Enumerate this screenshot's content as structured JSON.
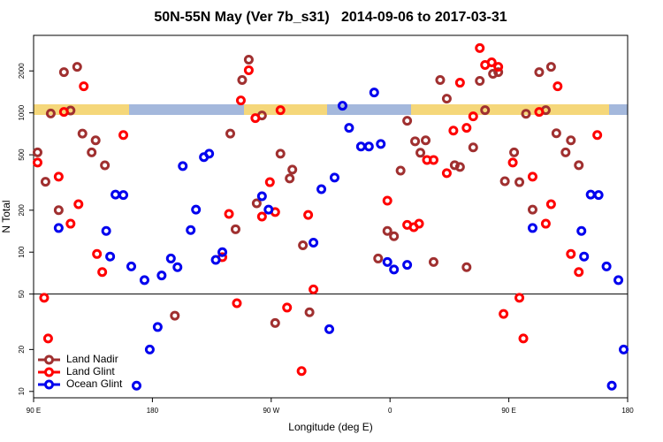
{
  "chart_data": {
    "type": "scatter",
    "title": "50N-55N May (Ver 7b_s31)   2014-09-06 to 2017-03-31",
    "x_label": "Longitude (deg E)",
    "y_label": "N Total",
    "xlim": [
      90,
      540
    ],
    "xticks": [
      {
        "value": 90,
        "label": "90 E"
      },
      180,
      {
        "value": 270,
        "label": "90 W"
      },
      {
        "value": 360,
        "label": "0"
      },
      {
        "value": 450,
        "label": "90 E"
      },
      {
        "value": 540,
        "label": "180"
      }
    ],
    "ylim": [
      9,
      3600
    ],
    "yticks": [
      10,
      20,
      50,
      100,
      200,
      500,
      1000,
      2000
    ],
    "yscale": "log",
    "hline": 50,
    "legend": "lower left",
    "series": [
      {
        "name": "Land Nadir",
        "color": "#a03030",
        "x": [
          93,
          99,
          103,
          109,
          113,
          118,
          123,
          127,
          134,
          137,
          144,
          197,
          239,
          243,
          248,
          253,
          259,
          263,
          273,
          277,
          284,
          286,
          294,
          299,
          351,
          358,
          363,
          368,
          373,
          379,
          383,
          387,
          393,
          398,
          403,
          409,
          413,
          418,
          423,
          428,
          432,
          438,
          442,
          447,
          454,
          458,
          463,
          468,
          473,
          478,
          482,
          486,
          493,
          497,
          503
        ],
        "values": [
          520,
          320,
          990,
          200,
          1960,
          1040,
          2140,
          710,
          520,
          635,
          420,
          35,
          710,
          146,
          1720,
          2410,
          224,
          957,
          31,
          509,
          338,
          391,
          112,
          37,
          90,
          142,
          130,
          385,
          877,
          625,
          517,
          635,
          85,
          1720,
          1264,
          421,
          409,
          78,
          565,
          1695,
          1045,
          1906,
          1960,
          323,
          520,
          318,
          985,
          202,
          1960,
          1045,
          2140,
          714,
          520,
          635,
          421
        ]
      },
      {
        "name": "Land Glint",
        "color": "#ff0000",
        "x": [
          93,
          98,
          101,
          109,
          113,
          118,
          124,
          128,
          138,
          142,
          158,
          233,
          238,
          244,
          247,
          253,
          258,
          263,
          269,
          273,
          277,
          282,
          293,
          298,
          302,
          358,
          373,
          378,
          382,
          388,
          393,
          403,
          408,
          413,
          418,
          423,
          428,
          432,
          437,
          442,
          446,
          453,
          458,
          461,
          468,
          473,
          478,
          482,
          487,
          497,
          503,
          517
        ],
        "values": [
          440,
          47,
          24,
          348,
          1015,
          160,
          221,
          1552,
          97,
          72,
          693,
          92,
          188,
          43,
          1228,
          2023,
          916,
          180,
          318,
          194,
          1045,
          40,
          14,
          185,
          54,
          234,
          157,
          151,
          160,
          459,
          459,
          369,
          746,
          1646,
          780,
          943,
          2918,
          2208,
          2306,
          2140,
          36,
          440,
          47,
          24,
          348,
          1015,
          160,
          221,
          1552,
          97,
          72,
          693
        ]
      },
      {
        "name": "Ocean Glint",
        "color": "#0000ee",
        "x": [
          109,
          145,
          148,
          152,
          158,
          164,
          168,
          174,
          178,
          184,
          187,
          194,
          199,
          203,
          209,
          213,
          219,
          223,
          228,
          233,
          263,
          268,
          302,
          308,
          314,
          318,
          324,
          329,
          338,
          344,
          348,
          353,
          358,
          363,
          373,
          468,
          505,
          507,
          512,
          518,
          524,
          528,
          533,
          537
        ],
        "values": [
          149,
          142,
          93,
          259,
          257,
          79,
          11,
          63,
          20,
          29,
          68,
          90,
          78,
          415,
          144,
          202,
          481,
          509,
          88,
          100,
          252,
          202,
          117,
          283,
          28,
          343,
          1125,
          780,
          573,
          573,
          1401,
          598,
          85,
          75,
          81,
          149,
          142,
          93,
          259,
          257,
          79,
          11,
          63,
          20
        ]
      }
    ]
  }
}
